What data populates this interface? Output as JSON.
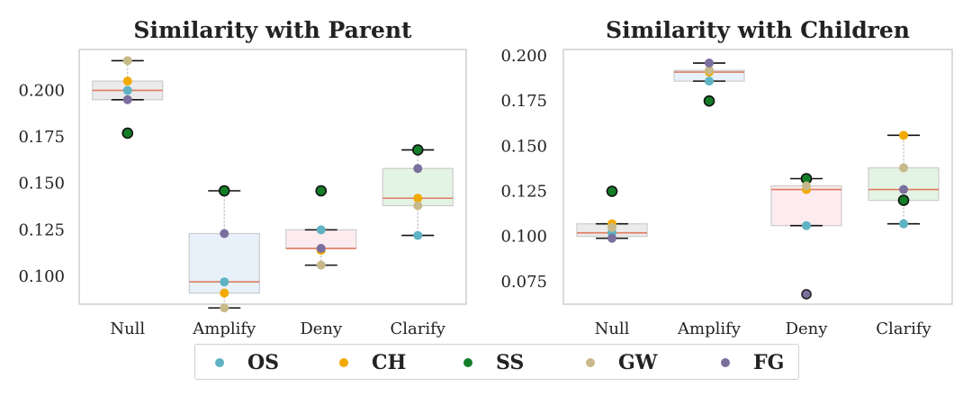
{
  "chart_data": [
    {
      "type": "box+scatter",
      "title": "Similarity with Parent",
      "categories": [
        "Null",
        "Amplify",
        "Deny",
        "Clarify"
      ],
      "ylim": [
        0.085,
        0.222
      ],
      "yticks": [
        "0.100",
        "0.125",
        "0.150",
        "0.175",
        "0.200"
      ],
      "grid": false,
      "box_fill": [
        "#e8e8e8",
        "#e4eef8",
        "#fbe7ec",
        "#dff2df"
      ],
      "boxes": [
        {
          "q1": 0.195,
          "median": 0.2,
          "q3": 0.205,
          "whisker_low": 0.195,
          "whisker_high": 0.216
        },
        {
          "q1": 0.091,
          "median": 0.097,
          "q3": 0.123,
          "whisker_low": 0.083,
          "whisker_high": 0.146
        },
        {
          "q1": 0.115,
          "median": 0.115,
          "q3": 0.125,
          "whisker_low": 0.106,
          "whisker_high": 0.125
        },
        {
          "q1": 0.138,
          "median": 0.142,
          "q3": 0.158,
          "whisker_low": 0.122,
          "whisker_high": 0.168
        }
      ],
      "series": [
        {
          "name": "OS",
          "values": [
            0.2,
            0.097,
            0.125,
            0.122
          ]
        },
        {
          "name": "CH",
          "values": [
            0.205,
            0.091,
            0.114,
            0.142
          ]
        },
        {
          "name": "SS",
          "values": [
            0.177,
            0.146,
            0.146,
            0.168
          ]
        },
        {
          "name": "GW",
          "values": [
            0.216,
            0.083,
            0.106,
            0.138
          ]
        },
        {
          "name": "FG",
          "values": [
            0.195,
            0.123,
            0.115,
            0.158
          ]
        }
      ]
    },
    {
      "type": "box+scatter",
      "title": "Similarity with Children",
      "categories": [
        "Null",
        "Amplify",
        "Deny",
        "Clarify"
      ],
      "ylim": [
        0.0625,
        0.2035
      ],
      "yticks": [
        "0.075",
        "0.100",
        "0.125",
        "0.150",
        "0.175",
        "0.200"
      ],
      "grid": false,
      "box_fill": [
        "#e8e8e8",
        "#e4eef8",
        "#fbe7ec",
        "#dff2df"
      ],
      "boxes": [
        {
          "q1": 0.1,
          "median": 0.102,
          "q3": 0.107,
          "whisker_low": 0.099,
          "whisker_high": 0.107
        },
        {
          "q1": 0.186,
          "median": 0.191,
          "q3": 0.192,
          "whisker_low": 0.186,
          "whisker_high": 0.196
        },
        {
          "q1": 0.106,
          "median": 0.126,
          "q3": 0.128,
          "whisker_low": 0.106,
          "whisker_high": 0.132
        },
        {
          "q1": 0.12,
          "median": 0.126,
          "q3": 0.138,
          "whisker_low": 0.107,
          "whisker_high": 0.156
        }
      ],
      "series": [
        {
          "name": "OS",
          "values": [
            0.102,
            0.186,
            0.106,
            0.107
          ]
        },
        {
          "name": "CH",
          "values": [
            0.107,
            0.191,
            0.126,
            0.156
          ]
        },
        {
          "name": "SS",
          "values": [
            0.125,
            0.175,
            0.132,
            0.12
          ]
        },
        {
          "name": "GW",
          "values": [
            0.105,
            0.192,
            0.128,
            0.138
          ]
        },
        {
          "name": "FG",
          "values": [
            0.099,
            0.196,
            0.068,
            0.126
          ]
        }
      ]
    }
  ],
  "legend": {
    "placement": "bottom-center",
    "items": [
      {
        "label": "OS",
        "color": "#5fb3c3"
      },
      {
        "label": "CH",
        "color": "#f2a900"
      },
      {
        "label": "SS",
        "color": "#137d27"
      },
      {
        "label": "GW",
        "color": "#c8b98a"
      },
      {
        "label": "FG",
        "color": "#7b6f9e"
      }
    ]
  }
}
